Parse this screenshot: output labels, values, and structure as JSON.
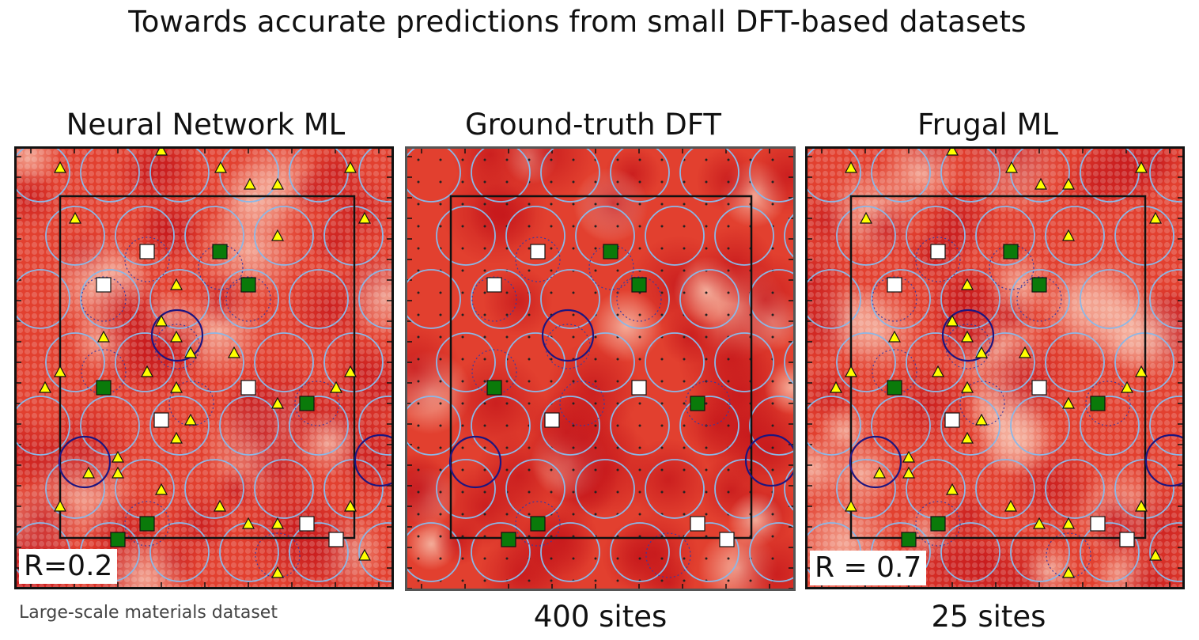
{
  "title": "Towards accurate predictions from small DFT-based datasets",
  "panels": [
    {
      "title": "Neural Network ML",
      "label": "R=0.2",
      "style": "dots"
    },
    {
      "title": "Ground-truth DFT",
      "label": "",
      "style": "smooth"
    },
    {
      "title": "Frugal ML",
      "label": "R = 0.7",
      "style": "dots"
    }
  ],
  "caption": "Large-scale materials dataset",
  "site_counts": {
    "dft": "400 sites",
    "frugal": "25 sites"
  },
  "colors": {
    "base": "#e2402f",
    "dark": "#c4151a",
    "light": "#f6b8a5",
    "site_circle": "#8ab8e8",
    "highlight_circle": "#1c1680",
    "triangle": "#ffff00",
    "green_square": "#0a7a0a",
    "white_square": "#ffffff"
  }
}
